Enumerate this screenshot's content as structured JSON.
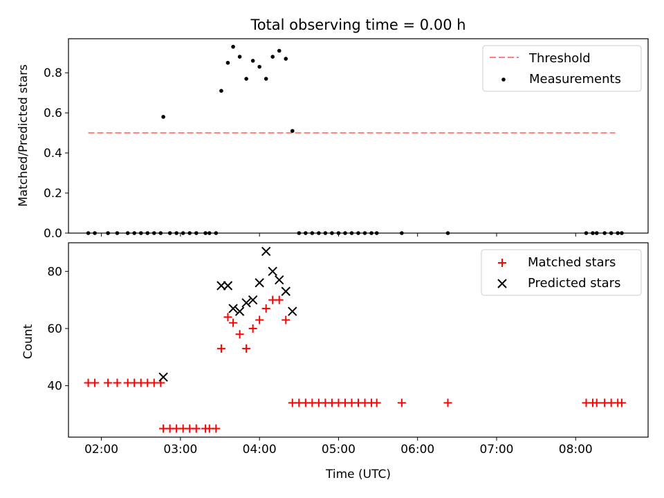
{
  "figure": {
    "title": "Total observing time = 0.00 h"
  },
  "colors": {
    "threshold": "#ff7f7f",
    "measurement": "#000000",
    "matched": "#ff0000",
    "predicted": "#000000"
  },
  "chart_data": [
    {
      "type": "scatter",
      "xlabel": "",
      "ylabel": "Matched/Predicted stars",
      "xlim": [
        "01:35",
        "08:55"
      ],
      "ylim": [
        0,
        0.97
      ],
      "yticks": [
        0.0,
        0.2,
        0.4,
        0.6,
        0.8
      ],
      "ytick_labels": [
        "0.0",
        "0.2",
        "0.4",
        "0.6",
        "0.8"
      ],
      "legend": {
        "location": "upper right",
        "entries": [
          "Threshold",
          "Measurements"
        ]
      },
      "threshold": {
        "name": "Threshold",
        "value": 0.5,
        "x_range": [
          "01:50",
          "08:30"
        ]
      },
      "series": [
        {
          "name": "Measurements",
          "marker": "dot",
          "x": [
            "01:50",
            "01:55",
            "02:05",
            "02:12",
            "02:20",
            "02:25",
            "02:30",
            "02:35",
            "02:40",
            "02:45",
            "02:47",
            "02:52",
            "02:57",
            "03:02",
            "03:07",
            "03:12",
            "03:19",
            "03:22",
            "03:27",
            "03:31",
            "03:36",
            "03:40",
            "03:45",
            "03:50",
            "03:55",
            "04:00",
            "04:05",
            "04:10",
            "04:15",
            "04:20",
            "04:25",
            "04:30",
            "04:35",
            "04:40",
            "04:45",
            "04:50",
            "04:55",
            "05:00",
            "05:05",
            "05:10",
            "05:15",
            "05:20",
            "05:25",
            "05:29",
            "05:48",
            "06:23",
            "08:08",
            "08:13",
            "08:16",
            "08:22",
            "08:27",
            "08:32",
            "08:35"
          ],
          "y": [
            0,
            0,
            0,
            0,
            0,
            0,
            0,
            0,
            0,
            0,
            0.58,
            0,
            0,
            0,
            0,
            0,
            0,
            0,
            0,
            0.71,
            0.85,
            0.93,
            0.88,
            0.77,
            0.86,
            0.83,
            0.77,
            0.88,
            0.91,
            0.87,
            0.51,
            0,
            0,
            0,
            0,
            0,
            0,
            0,
            0,
            0,
            0,
            0,
            0,
            0,
            0,
            0,
            0,
            0,
            0,
            0,
            0,
            0,
            0
          ]
        }
      ]
    },
    {
      "type": "scatter",
      "xlabel": "Time (UTC)",
      "ylabel": "Count",
      "xlim": [
        "01:35",
        "08:55"
      ],
      "ylim": [
        22,
        90
      ],
      "yticks": [
        40,
        60,
        80
      ],
      "ytick_labels": [
        "40",
        "60",
        "80"
      ],
      "xticks": [
        "02:00",
        "03:00",
        "04:00",
        "05:00",
        "06:00",
        "07:00",
        "08:00"
      ],
      "legend": {
        "location": "upper right",
        "entries": [
          "Matched stars",
          "Predicted stars"
        ]
      },
      "series": [
        {
          "name": "Matched stars",
          "marker": "plus",
          "x": [
            "01:50",
            "01:55",
            "02:05",
            "02:12",
            "02:20",
            "02:25",
            "02:30",
            "02:35",
            "02:40",
            "02:45",
            "02:47",
            "02:52",
            "02:57",
            "03:02",
            "03:07",
            "03:12",
            "03:19",
            "03:22",
            "03:27",
            "03:31",
            "03:36",
            "03:40",
            "03:45",
            "03:50",
            "03:55",
            "04:00",
            "04:05",
            "04:10",
            "04:15",
            "04:20",
            "04:25",
            "04:30",
            "04:35",
            "04:40",
            "04:45",
            "04:50",
            "04:55",
            "05:00",
            "05:05",
            "05:10",
            "05:15",
            "05:20",
            "05:25",
            "05:29",
            "05:48",
            "06:23",
            "08:08",
            "08:13",
            "08:16",
            "08:22",
            "08:27",
            "08:32",
            "08:35"
          ],
          "y": [
            41,
            41,
            41,
            41,
            41,
            41,
            41,
            41,
            41,
            41,
            25,
            25,
            25,
            25,
            25,
            25,
            25,
            25,
            25,
            53,
            64,
            62,
            58,
            53,
            60,
            63,
            67,
            70,
            70,
            63,
            34,
            34,
            34,
            34,
            34,
            34,
            34,
            34,
            34,
            34,
            34,
            34,
            34,
            34,
            34,
            34,
            34,
            34,
            34,
            34,
            34,
            34,
            34
          ]
        },
        {
          "name": "Predicted stars",
          "marker": "x",
          "x": [
            "02:47",
            "03:31",
            "03:36",
            "03:40",
            "03:45",
            "03:50",
            "03:55",
            "04:00",
            "04:05",
            "04:10",
            "04:15",
            "04:20",
            "04:25"
          ],
          "y": [
            43,
            75,
            75,
            67,
            66,
            69,
            70,
            76,
            87,
            80,
            77,
            73,
            66
          ]
        }
      ]
    }
  ]
}
